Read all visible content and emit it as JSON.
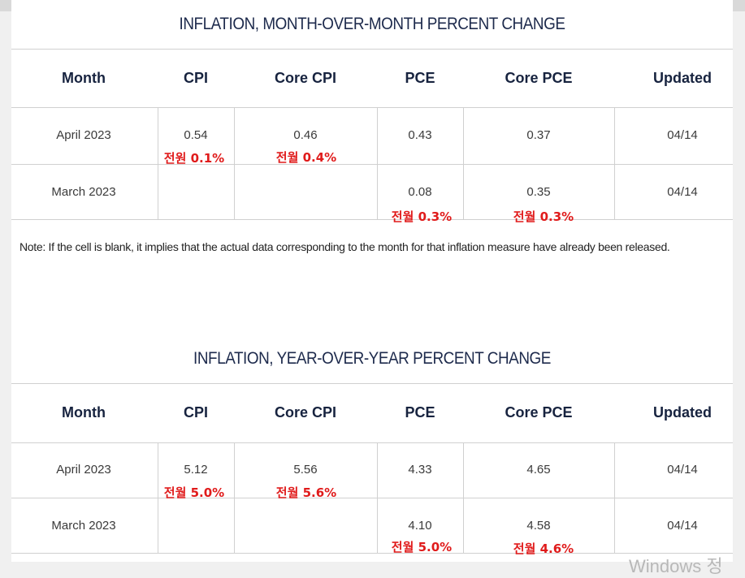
{
  "mom": {
    "title": "INFLATION, MONTH-OVER-MONTH PERCENT CHANGE",
    "headers": [
      "Month",
      "CPI",
      "Core CPI",
      "PCE",
      "Core PCE",
      "Updated"
    ],
    "rows": [
      {
        "month": "April 2023",
        "cpi": "0.54",
        "core_cpi": "0.46",
        "pce": "0.43",
        "core_pce": "0.37",
        "updated": "04/14"
      },
      {
        "month": "March 2023",
        "cpi": "",
        "core_cpi": "",
        "pce": "0.08",
        "core_pce": "0.35",
        "updated": "04/14"
      }
    ],
    "annotations": {
      "r1_cpi": "전원 0.1%",
      "r1_core_cpi": "전월 0.4%",
      "r2_pce": "전월 0.3%",
      "r2_core_pce": "전월 0.3%"
    }
  },
  "note": "Note: If the cell is blank, it implies that the actual data corresponding to the month for that inflation measure have already been released.",
  "yoy": {
    "title": "INFLATION, YEAR-OVER-YEAR PERCENT CHANGE",
    "headers": [
      "Month",
      "CPI",
      "Core CPI",
      "PCE",
      "Core PCE",
      "Updated"
    ],
    "rows": [
      {
        "month": "April 2023",
        "cpi": "5.12",
        "core_cpi": "5.56",
        "pce": "4.33",
        "core_pce": "4.65",
        "updated": "04/14"
      },
      {
        "month": "March 2023",
        "cpi": "",
        "core_cpi": "",
        "pce": "4.10",
        "core_pce": "4.58",
        "updated": "04/14"
      }
    ],
    "annotations": {
      "r1_cpi": "전월 5.0%",
      "r1_core_cpi": "전월 5.6%",
      "r2_pce": "전월 5.0%",
      "r2_core_pce": "전월 4.6%"
    }
  },
  "watermark": "Windows 정",
  "colors": {
    "title": "#1d2a4c",
    "header": "#17233f",
    "annotation": "#e01b1b"
  }
}
